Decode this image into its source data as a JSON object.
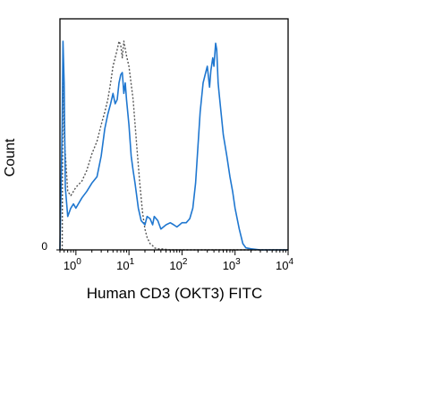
{
  "chart_data": {
    "type": "line",
    "title": "",
    "xlabel": "Human CD3 (OKT3) FITC",
    "ylabel": "Count",
    "x_scale": "log",
    "xlim": [
      0.5,
      10000
    ],
    "ylim": [
      0,
      100
    ],
    "x_ticks": [
      {
        "base": "10",
        "exp": "0",
        "value": 1
      },
      {
        "base": "10",
        "exp": "1",
        "value": 10
      },
      {
        "base": "10",
        "exp": "2",
        "value": 100
      },
      {
        "base": "10",
        "exp": "3",
        "value": 1000
      },
      {
        "base": "10",
        "exp": "4",
        "value": 10000
      }
    ],
    "y_ticks": [
      {
        "label": "0",
        "value": 0
      }
    ],
    "grid": false,
    "colors": {
      "stained": "#1f77d0",
      "control": "#555555"
    },
    "series": [
      {
        "style": "solid",
        "color": "#1f77d0",
        "x": [
          0.5,
          0.55,
          0.57,
          0.6,
          0.63,
          0.7,
          0.8,
          0.9,
          1.0,
          1.3,
          1.6,
          2.0,
          2.5,
          3.0,
          3.5,
          4.0,
          4.5,
          5.0,
          5.5,
          6.0,
          6.5,
          7.0,
          7.5,
          8.0,
          8.5,
          9.0,
          10,
          11,
          12,
          13,
          15,
          17,
          20,
          22,
          25,
          28,
          30,
          35,
          40,
          50,
          60,
          70,
          80,
          90,
          100,
          120,
          140,
          160,
          180,
          200,
          220,
          250,
          280,
          300,
          330,
          350,
          380,
          400,
          430,
          450,
          480,
          500,
          600,
          700,
          800,
          900,
          1000,
          1200,
          1400,
          1600,
          2000,
          3000,
          5000,
          10000
        ],
        "y": [
          0,
          60,
          100,
          80,
          30,
          16,
          20,
          22,
          20,
          25,
          28,
          32,
          35,
          45,
          58,
          65,
          70,
          75,
          70,
          72,
          80,
          84,
          85,
          75,
          80,
          72,
          60,
          45,
          38,
          32,
          20,
          14,
          12,
          16,
          15,
          12,
          16,
          14,
          10,
          12,
          13,
          12,
          11,
          12,
          13,
          13,
          15,
          20,
          32,
          50,
          66,
          80,
          85,
          88,
          78,
          86,
          92,
          88,
          99,
          96,
          80,
          75,
          55,
          45,
          35,
          28,
          20,
          10,
          3,
          1,
          0.5,
          0,
          0,
          0
        ]
      },
      {
        "style": "dotted",
        "color": "#555555",
        "x": [
          0.55,
          0.57,
          0.6,
          0.7,
          0.8,
          0.9,
          1.0,
          1.3,
          1.6,
          2.0,
          2.5,
          3.0,
          3.5,
          4.0,
          4.5,
          5.0,
          5.5,
          6.0,
          6.5,
          7.0,
          7.5,
          8.0,
          9.0,
          10,
          12,
          14,
          16,
          18,
          20,
          22,
          25,
          28,
          30,
          35,
          40,
          60,
          100,
          200,
          1000,
          10000
        ],
        "y": [
          0,
          96,
          55,
          28,
          26,
          28,
          30,
          33,
          38,
          46,
          52,
          60,
          66,
          72,
          80,
          88,
          92,
          96,
          100,
          98,
          92,
          100,
          93,
          88,
          72,
          50,
          32,
          18,
          10,
          6,
          3,
          2,
          1,
          0.5,
          0.5,
          0,
          0,
          0,
          0,
          0
        ]
      }
    ]
  }
}
